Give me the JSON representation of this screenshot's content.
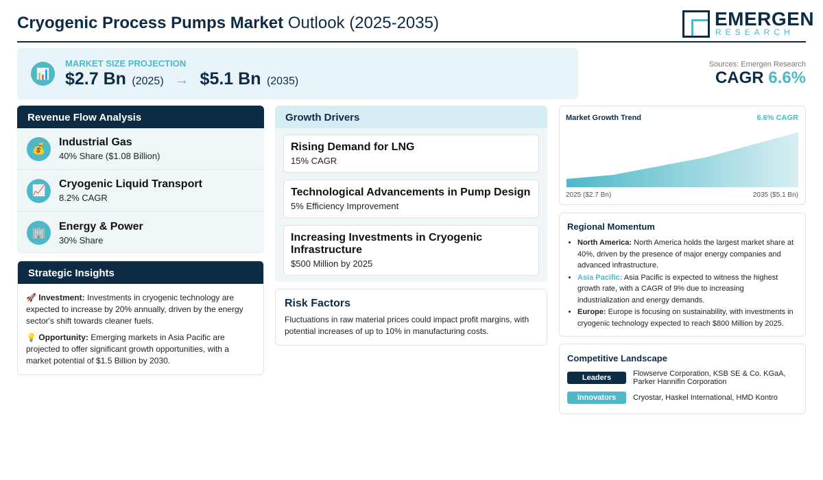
{
  "header": {
    "title_bold": "Cryogenic Process Pumps Market",
    "title_rest": "Outlook (2025-2035)",
    "logo_main": "EMERGEN",
    "logo_sub": "RESEARCH"
  },
  "summary": {
    "label": "MARKET SIZE PROJECTION",
    "start_value": "$2.7 Bn",
    "start_year": "(2025)",
    "arrow": "→",
    "end_value": "$5.1 Bn",
    "end_year": "(2035)",
    "sources": "Sources: Emergen Research",
    "cagr_label": "CAGR",
    "cagr_value": "6.6%"
  },
  "revenue_flow": {
    "title": "Revenue Flow Analysis",
    "items": [
      {
        "name": "Industrial Gas",
        "detail": "40% Share ($1.08 Billion)"
      },
      {
        "name": "Cryogenic Liquid Transport",
        "detail": "8.2% CAGR"
      },
      {
        "name": "Energy & Power",
        "detail": "30% Share"
      }
    ]
  },
  "strategic_insights": {
    "title": "Strategic Insights",
    "items": [
      {
        "label": "Investment:",
        "text": "Investments in cryogenic technology are expected to increase by 20% annually, driven by the energy sector's shift towards cleaner fuels."
      },
      {
        "label": "Opportunity:",
        "text": "Emerging markets in Asia Pacific are projected to offer significant growth opportunities, with a market potential of $1.5 Billion by 2030."
      }
    ]
  },
  "growth_drivers": {
    "title": "Growth Drivers",
    "items": [
      {
        "name": "Rising Demand for LNG",
        "detail": "15% CAGR"
      },
      {
        "name": "Technological Advancements in Pump Design",
        "detail": "5% Efficiency Improvement"
      },
      {
        "name": "Increasing Investments in Cryogenic Infrastructure",
        "detail": "$500 Million by 2025"
      }
    ]
  },
  "risk_factors": {
    "title": "Risk Factors",
    "text": "Fluctuations in raw material prices could impact profit margins, with potential increases of up to 10% in manufacturing costs."
  },
  "trend": {
    "title": "Market Growth Trend",
    "badge": "6.6% CAGR",
    "start_label": "2025 ($2.7 Bn)",
    "end_label": "2035 ($5.1 Bn)"
  },
  "regional": {
    "title": "Regional Momentum",
    "items": [
      {
        "region": "North America:",
        "text": "North America holds the largest market share at 40%, driven by the presence of major energy companies and advanced infrastructure."
      },
      {
        "region": "Asia Pacific:",
        "text": "Asia Pacific is expected to witness the highest growth rate, with a CAGR of 9% due to increasing industrialization and energy demands."
      },
      {
        "region": "Europe:",
        "text": "Europe is focusing on sustainability, with investments in cryogenic technology expected to reach $800 Million by 2025."
      }
    ]
  },
  "competitive": {
    "title": "Competitive Landscape",
    "rows": [
      {
        "tag": "Leaders",
        "companies": "Flowserve Corporation, KSB SE & Co. KGaA, Parker Hannifin Corporation"
      },
      {
        "tag": "Innovators",
        "companies": "Cryostar, Haskel International, HMD Kontro"
      }
    ]
  }
}
